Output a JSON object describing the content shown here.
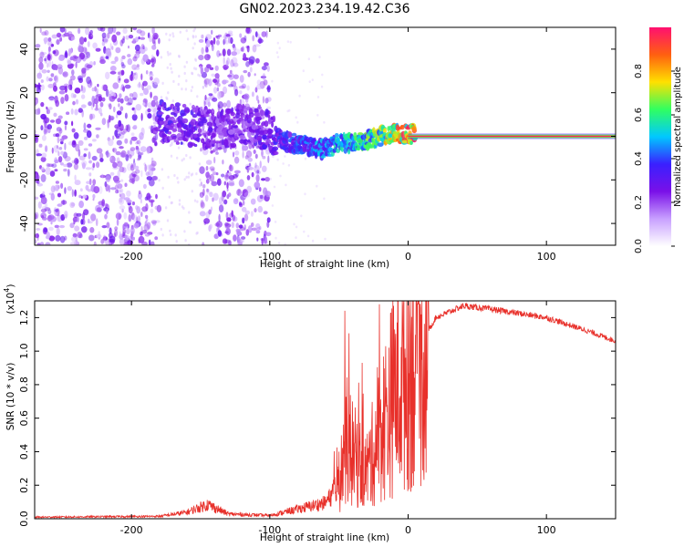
{
  "title": "GN02.2023.234.19.42.C36",
  "chart_data": [
    {
      "type": "heatmap",
      "name": "spectrogram",
      "xlabel": "Height of straight line (km)",
      "ylabel": "Frequency (Hz)",
      "xlim": [
        -270,
        150
      ],
      "ylim": [
        -50,
        50
      ],
      "xticks": [
        -200,
        -100,
        0,
        100
      ],
      "xtick_labels": [
        "-200",
        "-100",
        "0",
        "100"
      ],
      "yticks": [
        -40,
        -20,
        0,
        20,
        40
      ],
      "ytick_labels": [
        "-40",
        "-20",
        "0",
        "20",
        "40"
      ],
      "colorbar": {
        "label": "Normalized spectral amplitude",
        "range": [
          0,
          1
        ],
        "ticks": [
          0.0,
          0.2,
          0.4,
          0.6,
          0.8
        ],
        "tick_labels": [
          "0.0",
          "0.2",
          "0.4",
          "0.6",
          "0.8"
        ],
        "colormap": [
          "#ffffff",
          "#c8a0ff",
          "#7a10e8",
          "#3a20ff",
          "#00c8ff",
          "#30ff60",
          "#ffe000",
          "#ff6010",
          "#ff1070"
        ]
      },
      "features": {
        "noise_regions": [
          [
            -270,
            -180
          ],
          [
            -150,
            -100
          ]
        ],
        "signal_track": [
          {
            "x": -180,
            "y": 7,
            "amp": 0.3
          },
          {
            "x": -160,
            "y": 5,
            "amp": 0.3
          },
          {
            "x": -140,
            "y": 3,
            "amp": 0.25
          },
          {
            "x": -120,
            "y": 5,
            "amp": 0.25
          },
          {
            "x": -100,
            "y": 2,
            "amp": 0.3
          },
          {
            "x": -90,
            "y": -2,
            "amp": 0.35
          },
          {
            "x": -75,
            "y": -4,
            "amp": 0.4
          },
          {
            "x": -60,
            "y": -6,
            "amp": 0.45
          },
          {
            "x": -50,
            "y": -3,
            "amp": 0.5
          },
          {
            "x": -40,
            "y": -3,
            "amp": 0.55
          },
          {
            "x": -20,
            "y": 0,
            "amp": 0.65
          },
          {
            "x": -10,
            "y": 1,
            "amp": 0.75
          },
          {
            "x": 0,
            "y": 1,
            "amp": 0.85
          },
          {
            "x": 150,
            "y": 0,
            "amp": 0.95
          }
        ]
      }
    },
    {
      "type": "line",
      "name": "snr",
      "xlabel": "Height of straight line (km)",
      "ylabel": "SNR (10 * v/v)",
      "y_scale_label": "(x10",
      "y_scale_exponent": "4",
      "xlim": [
        -270,
        150
      ],
      "ylim": [
        0,
        1.3
      ],
      "xticks": [
        -200,
        -100,
        0,
        100
      ],
      "xtick_labels": [
        "-200",
        "-100",
        "0",
        "100"
      ],
      "yticks": [
        0,
        0.2,
        0.4,
        0.6,
        0.8,
        1.0,
        1.2
      ],
      "ytick_labels": [
        "0.0",
        "0.2",
        "0.4",
        "0.6",
        "0.8",
        "1.0",
        "1.2"
      ],
      "color": "#e8302a",
      "envelope": [
        {
          "x": -270,
          "y": 0.01
        },
        {
          "x": -180,
          "y": 0.015
        },
        {
          "x": -160,
          "y": 0.04
        },
        {
          "x": -145,
          "y": 0.09
        },
        {
          "x": -130,
          "y": 0.03
        },
        {
          "x": -100,
          "y": 0.02
        },
        {
          "x": -80,
          "y": 0.06
        },
        {
          "x": -60,
          "y": 0.1
        },
        {
          "x": -50,
          "y": 0.2
        },
        {
          "x": -45,
          "y": 0.5
        },
        {
          "x": -40,
          "y": 0.4
        },
        {
          "x": -30,
          "y": 0.3
        },
        {
          "x": -20,
          "y": 0.55
        },
        {
          "x": -10,
          "y": 0.8
        },
        {
          "x": 0,
          "y": 0.95
        },
        {
          "x": 10,
          "y": 1.05
        },
        {
          "x": 20,
          "y": 1.2
        },
        {
          "x": 40,
          "y": 1.27
        },
        {
          "x": 60,
          "y": 1.25
        },
        {
          "x": 100,
          "y": 1.2
        },
        {
          "x": 130,
          "y": 1.12
        },
        {
          "x": 150,
          "y": 1.06
        }
      ]
    }
  ]
}
